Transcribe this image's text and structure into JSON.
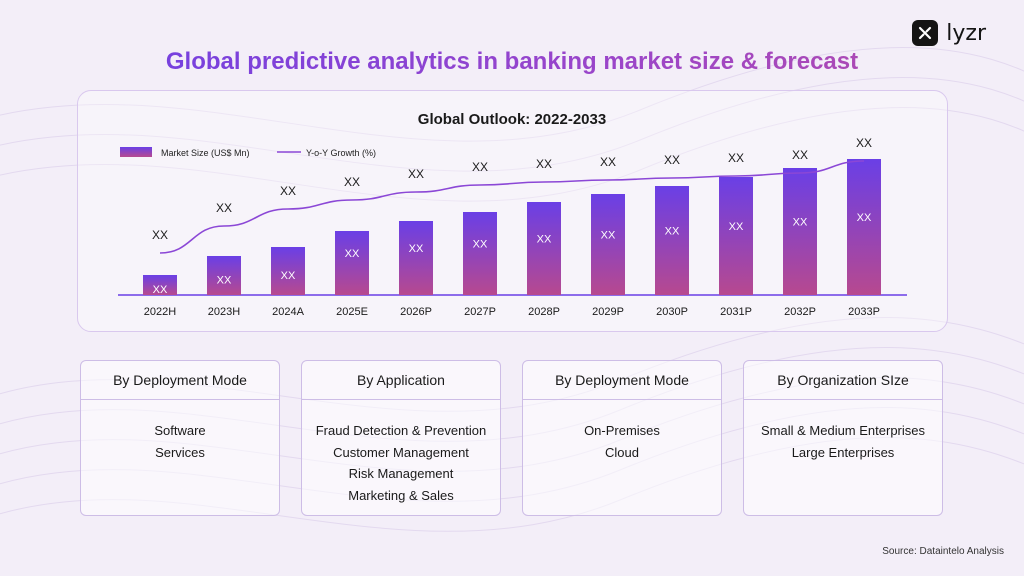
{
  "brand": {
    "name": "lyzr"
  },
  "title": "Global predictive analytics in banking market size & forecast",
  "chart_data": {
    "type": "bar",
    "title": "Global Outlook: 2022-2033",
    "categories": [
      "2022H",
      "2023H",
      "2024A",
      "2025E",
      "2026P",
      "2027P",
      "2028P",
      "2029P",
      "2030P",
      "2031P",
      "2032P",
      "2033P"
    ],
    "series": [
      {
        "name": "Market Size (US$ Mn)",
        "type": "bar",
        "values": [
          2.0,
          3.9,
          4.8,
          6.4,
          7.4,
          8.3,
          9.3,
          10.1,
          10.9,
          11.8,
          12.7,
          13.6
        ],
        "labels": [
          "XX",
          "XX",
          "XX",
          "XX",
          "XX",
          "XX",
          "XX",
          "XX",
          "XX",
          "XX",
          "XX",
          "XX"
        ],
        "color": "#6a3fe6"
      },
      {
        "name": "Y-o-Y Growth (%)",
        "type": "line",
        "values": [
          4.2,
          6.9,
          8.6,
          9.5,
          10.3,
          11.0,
          11.3,
          11.5,
          11.7,
          11.9,
          12.2,
          13.4
        ],
        "labels": [
          "XX",
          "XX",
          "XX",
          "XX",
          "XX",
          "XX",
          "XX",
          "XX",
          "XX",
          "XX",
          "XX",
          "XX"
        ],
        "color": "#8b47d6"
      }
    ],
    "ylim": [
      0,
      15
    ],
    "grid": false,
    "legend": "top-left"
  },
  "segments": [
    {
      "header": "By Deployment Mode",
      "items": [
        "Software",
        "Services"
      ]
    },
    {
      "header": "By Application",
      "items": [
        "Fraud Detection & Prevention",
        "Customer Management",
        "Risk Management",
        "Marketing & Sales"
      ]
    },
    {
      "header": "By Deployment Mode",
      "items": [
        "On-Premises",
        "Cloud"
      ]
    },
    {
      "header": "By Organization SIze",
      "items": [
        "Small & Medium Enterprises",
        "Large Enterprises"
      ]
    }
  ],
  "source": "Source: Dataintelo Analysis"
}
